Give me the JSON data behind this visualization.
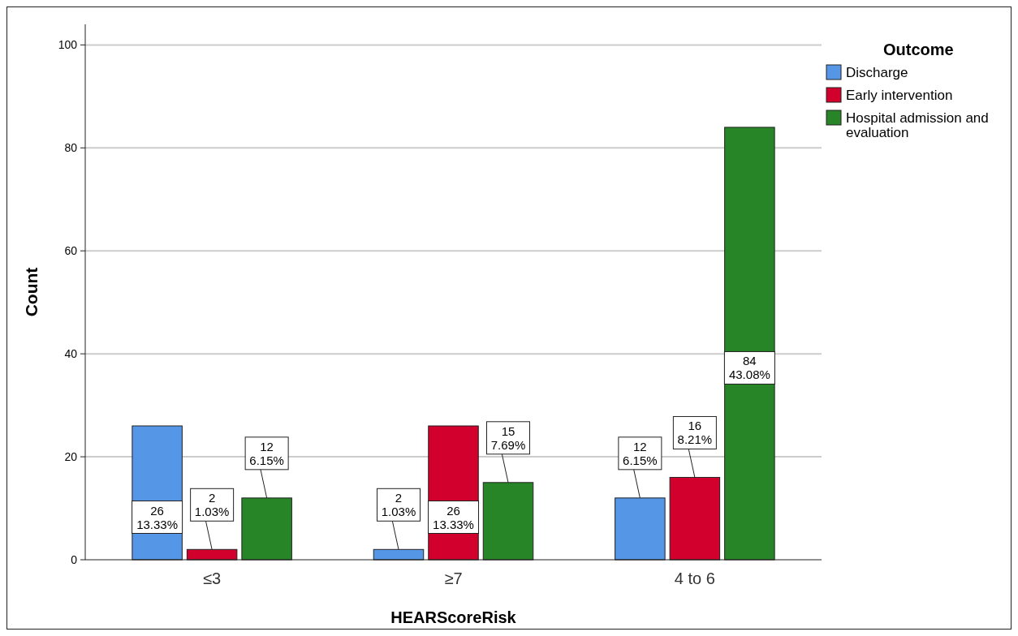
{
  "chart_data": {
    "type": "bar",
    "xlabel": "HEARScoreRisk",
    "ylabel": "Count",
    "legend_title": "Outcome",
    "categories": [
      "≤3",
      "≥7",
      "4 to 6"
    ],
    "series": [
      {
        "name": "Discharge",
        "color": "#5596e6",
        "values": [
          26,
          2,
          12
        ],
        "value_labels": [
          "26\n13.33%",
          "2\n1.03%",
          "12\n6.15%"
        ]
      },
      {
        "name": "Early intervention",
        "color": "#d2002d",
        "values": [
          2,
          26,
          16
        ],
        "value_labels": [
          "2\n1.03%",
          "26\n13.33%",
          "16\n8.21%"
        ]
      },
      {
        "name": "Hospital admission and evaluation",
        "color": "#278427",
        "values": [
          12,
          15,
          84
        ],
        "value_labels": [
          "12\n6.15%",
          "15\n7.69%",
          "84\n43.08%"
        ]
      }
    ],
    "ylim": [
      0,
      104
    ],
    "yticks": [
      0,
      20,
      40,
      60,
      80,
      100
    ],
    "grid": "y",
    "legend": "top right"
  }
}
